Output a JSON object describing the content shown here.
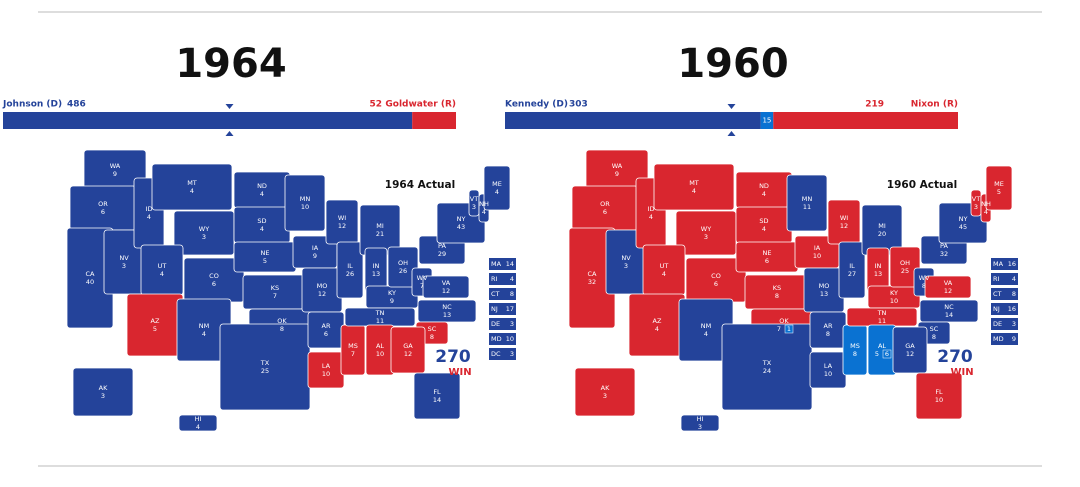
{
  "party_colors": {
    "D": "#24439a",
    "R": "#d9262f",
    "U": "#0a72d2"
  },
  "maps": [
    {
      "year": "1964",
      "map_label": "1964 Actual",
      "logo_number": "270",
      "logo_text": "WIN",
      "segments": [
        {
          "name": "Johnson (D)",
          "votes": 486,
          "party": "D"
        },
        {
          "name": "Goldwater (R)",
          "votes": 52,
          "party": "R"
        }
      ],
      "states": [
        {
          "abbr": "WA",
          "votes": 9,
          "party": "D"
        },
        {
          "abbr": "OR",
          "votes": 6,
          "party": "D"
        },
        {
          "abbr": "CA",
          "votes": 40,
          "party": "D"
        },
        {
          "abbr": "NV",
          "votes": 3,
          "party": "D"
        },
        {
          "abbr": "ID",
          "votes": 4,
          "party": "D"
        },
        {
          "abbr": "MT",
          "votes": 4,
          "party": "D"
        },
        {
          "abbr": "WY",
          "votes": 3,
          "party": "D"
        },
        {
          "abbr": "UT",
          "votes": 4,
          "party": "D"
        },
        {
          "abbr": "AZ",
          "votes": 5,
          "party": "R"
        },
        {
          "abbr": "CO",
          "votes": 6,
          "party": "D"
        },
        {
          "abbr": "NM",
          "votes": 4,
          "party": "D"
        },
        {
          "abbr": "ND",
          "votes": 4,
          "party": "D"
        },
        {
          "abbr": "SD",
          "votes": 4,
          "party": "D"
        },
        {
          "abbr": "NE",
          "votes": 5,
          "party": "D"
        },
        {
          "abbr": "KS",
          "votes": 7,
          "party": "D"
        },
        {
          "abbr": "OK",
          "votes": 8,
          "party": "D"
        },
        {
          "abbr": "TX",
          "votes": 25,
          "party": "D"
        },
        {
          "abbr": "MN",
          "votes": 10,
          "party": "D"
        },
        {
          "abbr": "IA",
          "votes": 9,
          "party": "D"
        },
        {
          "abbr": "MO",
          "votes": 12,
          "party": "D"
        },
        {
          "abbr": "AR",
          "votes": 6,
          "party": "D"
        },
        {
          "abbr": "LA",
          "votes": 10,
          "party": "R"
        },
        {
          "abbr": "WI",
          "votes": 12,
          "party": "D"
        },
        {
          "abbr": "IL",
          "votes": 26,
          "party": "D"
        },
        {
          "abbr": "MS",
          "votes": 7,
          "party": "R"
        },
        {
          "abbr": "MI",
          "votes": 21,
          "party": "D"
        },
        {
          "abbr": "IN",
          "votes": 13,
          "party": "D"
        },
        {
          "abbr": "KY",
          "votes": 9,
          "party": "D"
        },
        {
          "abbr": "TN",
          "votes": 11,
          "party": "D"
        },
        {
          "abbr": "AL",
          "votes": 10,
          "party": "R"
        },
        {
          "abbr": "OH",
          "votes": 26,
          "party": "D"
        },
        {
          "abbr": "WV",
          "votes": 7,
          "party": "D"
        },
        {
          "abbr": "VA",
          "votes": 12,
          "party": "D"
        },
        {
          "abbr": "NC",
          "votes": 13,
          "party": "D"
        },
        {
          "abbr": "SC",
          "votes": 8,
          "party": "R"
        },
        {
          "abbr": "GA",
          "votes": 12,
          "party": "R"
        },
        {
          "abbr": "FL",
          "votes": 14,
          "party": "D"
        },
        {
          "abbr": "PA",
          "votes": 29,
          "party": "D"
        },
        {
          "abbr": "NY",
          "votes": 43,
          "party": "D"
        },
        {
          "abbr": "VT",
          "votes": 3,
          "party": "D"
        },
        {
          "abbr": "NH",
          "votes": 4,
          "party": "D"
        },
        {
          "abbr": "ME",
          "votes": 4,
          "party": "D"
        },
        {
          "abbr": "AK",
          "votes": 3,
          "party": "D"
        },
        {
          "abbr": "HI",
          "votes": 4,
          "party": "D"
        }
      ],
      "small_states": [
        {
          "abbr": "MA",
          "votes": 14,
          "party": "D"
        },
        {
          "abbr": "RI",
          "votes": 4,
          "party": "D"
        },
        {
          "abbr": "CT",
          "votes": 8,
          "party": "D"
        },
        {
          "abbr": "NJ",
          "votes": 17,
          "party": "D"
        },
        {
          "abbr": "DE",
          "votes": 3,
          "party": "D"
        },
        {
          "abbr": "MD",
          "votes": 10,
          "party": "D"
        },
        {
          "abbr": "DC",
          "votes": 3,
          "party": "D"
        }
      ]
    },
    {
      "year": "1960",
      "map_label": "1960 Actual",
      "logo_number": "270",
      "logo_text": "WIN",
      "segments": [
        {
          "name": "Kennedy (D)",
          "votes": 303,
          "party": "D"
        },
        {
          "votes": 15,
          "party": "U"
        },
        {
          "name": "Nixon (R)",
          "votes": 219,
          "party": "R"
        }
      ],
      "states": [
        {
          "abbr": "WA",
          "votes": 9,
          "party": "R"
        },
        {
          "abbr": "OR",
          "votes": 6,
          "party": "R"
        },
        {
          "abbr": "CA",
          "votes": 32,
          "party": "R"
        },
        {
          "abbr": "NV",
          "votes": 3,
          "party": "D"
        },
        {
          "abbr": "ID",
          "votes": 4,
          "party": "R"
        },
        {
          "abbr": "MT",
          "votes": 4,
          "party": "R"
        },
        {
          "abbr": "WY",
          "votes": 3,
          "party": "R"
        },
        {
          "abbr": "UT",
          "votes": 4,
          "party": "R"
        },
        {
          "abbr": "AZ",
          "votes": 4,
          "party": "R"
        },
        {
          "abbr": "CO",
          "votes": 6,
          "party": "R"
        },
        {
          "abbr": "NM",
          "votes": 4,
          "party": "D"
        },
        {
          "abbr": "ND",
          "votes": 4,
          "party": "R"
        },
        {
          "abbr": "SD",
          "votes": 4,
          "party": "R"
        },
        {
          "abbr": "NE",
          "votes": 6,
          "party": "R"
        },
        {
          "abbr": "KS",
          "votes": 8,
          "party": "R"
        },
        {
          "abbr": "OK",
          "votes": 7,
          "party": "R",
          "split": 1,
          "split_party": "U"
        },
        {
          "abbr": "TX",
          "votes": 24,
          "party": "D"
        },
        {
          "abbr": "MN",
          "votes": 11,
          "party": "D"
        },
        {
          "abbr": "IA",
          "votes": 10,
          "party": "R"
        },
        {
          "abbr": "MO",
          "votes": 13,
          "party": "D"
        },
        {
          "abbr": "AR",
          "votes": 8,
          "party": "D"
        },
        {
          "abbr": "LA",
          "votes": 10,
          "party": "D"
        },
        {
          "abbr": "WI",
          "votes": 12,
          "party": "R"
        },
        {
          "abbr": "IL",
          "votes": 27,
          "party": "D"
        },
        {
          "abbr": "MS",
          "votes": 8,
          "party": "U"
        },
        {
          "abbr": "MI",
          "votes": 20,
          "party": "D"
        },
        {
          "abbr": "IN",
          "votes": 13,
          "party": "R"
        },
        {
          "abbr": "KY",
          "votes": 10,
          "party": "R"
        },
        {
          "abbr": "TN",
          "votes": 11,
          "party": "R"
        },
        {
          "abbr": "AL",
          "votes": 5,
          "party": "U",
          "split": 6,
          "split_party": "U"
        },
        {
          "abbr": "OH",
          "votes": 25,
          "party": "R"
        },
        {
          "abbr": "WV",
          "votes": 8,
          "party": "D"
        },
        {
          "abbr": "VA",
          "votes": 12,
          "party": "R"
        },
        {
          "abbr": "NC",
          "votes": 14,
          "party": "D"
        },
        {
          "abbr": "SC",
          "votes": 8,
          "party": "D"
        },
        {
          "abbr": "GA",
          "votes": 12,
          "party": "D"
        },
        {
          "abbr": "FL",
          "votes": 10,
          "party": "R"
        },
        {
          "abbr": "PA",
          "votes": 32,
          "party": "D"
        },
        {
          "abbr": "NY",
          "votes": 45,
          "party": "D"
        },
        {
          "abbr": "VT",
          "votes": 3,
          "party": "R"
        },
        {
          "abbr": "NH",
          "votes": 4,
          "party": "R"
        },
        {
          "abbr": "ME",
          "votes": 5,
          "party": "R"
        },
        {
          "abbr": "AK",
          "votes": 3,
          "party": "R"
        },
        {
          "abbr": "HI",
          "votes": 3,
          "party": "D"
        }
      ],
      "small_states": [
        {
          "abbr": "MA",
          "votes": 16,
          "party": "D"
        },
        {
          "abbr": "RI",
          "votes": 4,
          "party": "D"
        },
        {
          "abbr": "CT",
          "votes": 8,
          "party": "D"
        },
        {
          "abbr": "NJ",
          "votes": 16,
          "party": "D"
        },
        {
          "abbr": "DE",
          "votes": 3,
          "party": "D"
        },
        {
          "abbr": "MD",
          "votes": 9,
          "party": "D"
        }
      ]
    }
  ]
}
